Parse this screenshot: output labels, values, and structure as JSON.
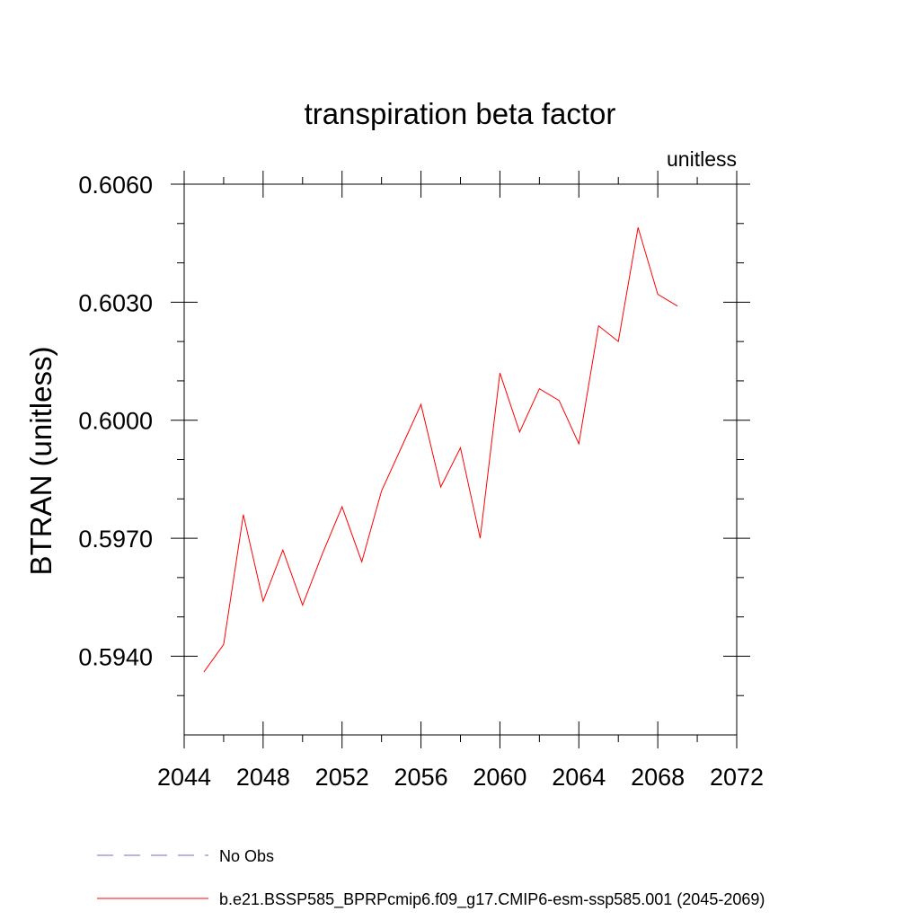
{
  "chart_data": {
    "type": "line",
    "title": "transpiration beta factor",
    "units_label": "unitless",
    "ylabel": "BTRAN  (unitless)",
    "xlabel": "",
    "xlim": [
      2044,
      2072
    ],
    "ylim": [
      0.592,
      0.606
    ],
    "x_ticks": [
      2044,
      2048,
      2052,
      2056,
      2060,
      2064,
      2068,
      2072
    ],
    "x_tick_labels": [
      "2044",
      "2048",
      "2052",
      "2056",
      "2060",
      "2064",
      "2068",
      "2072"
    ],
    "x_minor_ticks": [
      2046,
      2050,
      2054,
      2058,
      2062,
      2066,
      2070
    ],
    "y_ticks": [
      0.594,
      0.597,
      0.6,
      0.603,
      0.606
    ],
    "y_tick_labels": [
      "0.5940",
      "0.5970",
      "0.6000",
      "0.6030",
      "0.6060"
    ],
    "y_minor_ticks": [
      0.593,
      0.595,
      0.596,
      0.598,
      0.599,
      0.601,
      0.602,
      0.604,
      0.605
    ],
    "grid": false,
    "legend_position": "bottom",
    "series": [
      {
        "name": "No Obs",
        "color": "#7b68c8",
        "dash": "dashed",
        "x": [],
        "values": []
      },
      {
        "name": "b.e21.BSSP585_BPRPcmip6.f09_g17.CMIP6-esm-ssp585.001 (2045-2069)",
        "color": "#ff0000",
        "dash": "solid",
        "x": [
          2045,
          2046,
          2047,
          2048,
          2049,
          2050,
          2051,
          2052,
          2053,
          2054,
          2055,
          2056,
          2057,
          2058,
          2059,
          2060,
          2061,
          2062,
          2063,
          2064,
          2065,
          2066,
          2067,
          2068,
          2069
        ],
        "values": [
          0.5936,
          0.5943,
          0.5976,
          0.5954,
          0.5967,
          0.5953,
          0.5966,
          0.5978,
          0.5964,
          0.5982,
          0.5993,
          0.6004,
          0.5983,
          0.5993,
          0.597,
          0.6012,
          0.5997,
          0.6008,
          0.6005,
          0.5994,
          0.6024,
          0.602,
          0.6049,
          0.6032,
          0.6029
        ]
      }
    ]
  }
}
